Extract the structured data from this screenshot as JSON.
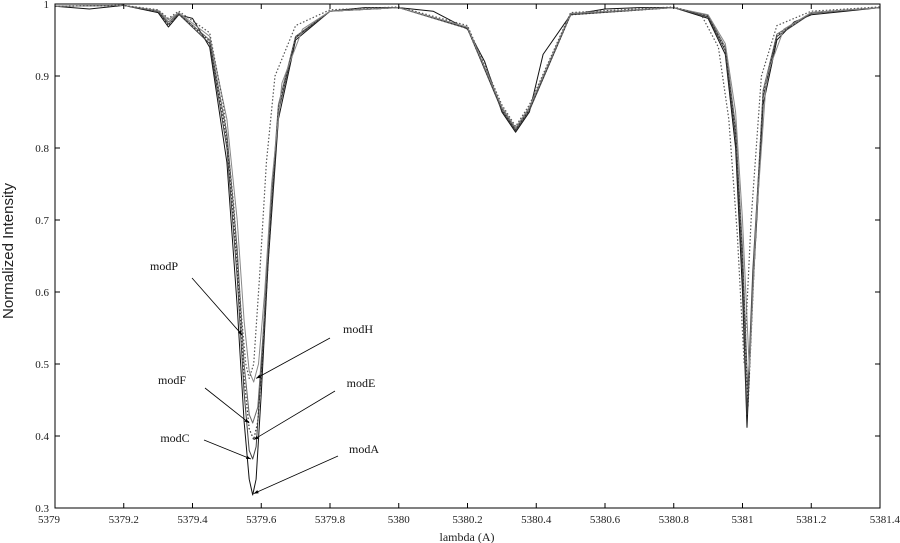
{
  "chart_data": {
    "type": "line",
    "xlabel": "lambda (A)",
    "ylabel": "Normalized Intensity",
    "xlim": [
      5379,
      5381.4
    ],
    "ylim": [
      0.3,
      1
    ],
    "x_ticks": [
      "5379",
      "5379.2",
      "5379.4",
      "5379.6",
      "5379.8",
      "5380",
      "5380.2",
      "5380.4",
      "5380.6",
      "5380.8",
      "5381",
      "5381.2",
      "5381.4"
    ],
    "y_ticks": [
      "0.3",
      "0.4",
      "0.5",
      "0.6",
      "0.7",
      "0.8",
      "0.9",
      "1"
    ],
    "grid": false,
    "series": [
      {
        "name": "modA",
        "style": "solid",
        "x": [
          5379.0,
          5379.1,
          5379.2,
          5379.3,
          5379.33,
          5379.36,
          5379.4,
          5379.45,
          5379.5,
          5379.53,
          5379.55,
          5379.565,
          5379.575,
          5379.585,
          5379.6,
          5379.62,
          5379.65,
          5379.7,
          5379.8,
          5379.9,
          5380.0,
          5380.1,
          5380.2,
          5380.25,
          5380.3,
          5380.34,
          5380.38,
          5380.42,
          5380.5,
          5380.6,
          5380.7,
          5380.8,
          5380.9,
          5380.95,
          5380.98,
          5381.0,
          5381.013,
          5381.03,
          5381.06,
          5381.1,
          5381.15,
          5381.2,
          5381.3,
          5381.4
        ],
        "y": [
          0.997,
          0.993,
          0.998,
          0.988,
          0.968,
          0.985,
          0.98,
          0.94,
          0.78,
          0.58,
          0.42,
          0.34,
          0.318,
          0.34,
          0.46,
          0.64,
          0.84,
          0.95,
          0.99,
          0.995,
          0.995,
          0.99,
          0.965,
          0.92,
          0.85,
          0.822,
          0.85,
          0.93,
          0.985,
          0.993,
          0.995,
          0.995,
          0.98,
          0.93,
          0.8,
          0.6,
          0.412,
          0.6,
          0.86,
          0.95,
          0.975,
          0.985,
          0.99,
          0.995
        ]
      },
      {
        "name": "modC",
        "style": "solid",
        "x": [
          5379.0,
          5379.2,
          5379.3,
          5379.33,
          5379.36,
          5379.45,
          5379.5,
          5379.53,
          5379.55,
          5379.565,
          5379.575,
          5379.585,
          5379.6,
          5379.62,
          5379.65,
          5379.7,
          5379.8,
          5380.0,
          5380.2,
          5380.3,
          5380.34,
          5380.38,
          5380.5,
          5380.8,
          5380.9,
          5380.95,
          5380.98,
          5381.0,
          5381.013,
          5381.03,
          5381.06,
          5381.1,
          5381.2,
          5381.4
        ],
        "y": [
          0.997,
          0.998,
          0.99,
          0.972,
          0.986,
          0.945,
          0.8,
          0.62,
          0.46,
          0.38,
          0.368,
          0.385,
          0.49,
          0.66,
          0.85,
          0.953,
          0.99,
          0.995,
          0.966,
          0.852,
          0.824,
          0.852,
          0.985,
          0.995,
          0.982,
          0.935,
          0.815,
          0.63,
          0.43,
          0.63,
          0.87,
          0.955,
          0.987,
          0.995
        ]
      },
      {
        "name": "modF",
        "style": "solid",
        "x": [
          5379.0,
          5379.2,
          5379.3,
          5379.33,
          5379.36,
          5379.45,
          5379.5,
          5379.53,
          5379.55,
          5379.565,
          5379.575,
          5379.59,
          5379.605,
          5379.625,
          5379.65,
          5379.7,
          5379.8,
          5380.0,
          5380.2,
          5380.3,
          5380.34,
          5380.38,
          5380.5,
          5380.8,
          5380.9,
          5380.95,
          5380.98,
          5381.0,
          5381.016,
          5381.035,
          5381.06,
          5381.1,
          5381.2,
          5381.4
        ],
        "y": [
          0.997,
          0.998,
          0.99,
          0.975,
          0.987,
          0.95,
          0.82,
          0.66,
          0.5,
          0.43,
          0.418,
          0.44,
          0.54,
          0.7,
          0.86,
          0.955,
          0.99,
          0.995,
          0.967,
          0.855,
          0.826,
          0.855,
          0.986,
          0.995,
          0.984,
          0.94,
          0.83,
          0.66,
          0.455,
          0.66,
          0.88,
          0.958,
          0.988,
          0.995
        ]
      },
      {
        "name": "modE",
        "style": "dotted",
        "x": [
          5379.0,
          5379.2,
          5379.3,
          5379.33,
          5379.36,
          5379.45,
          5379.5,
          5379.53,
          5379.55,
          5379.565,
          5379.578,
          5379.59,
          5379.605,
          5379.625,
          5379.65,
          5379.7,
          5379.8,
          5380.0,
          5380.2,
          5380.3,
          5380.34,
          5380.38,
          5380.5,
          5380.8,
          5380.9,
          5380.95,
          5380.98,
          5381.0,
          5381.016,
          5381.035,
          5381.06,
          5381.1,
          5381.2,
          5381.4
        ],
        "y": [
          0.997,
          0.998,
          0.99,
          0.97,
          0.986,
          0.948,
          0.81,
          0.64,
          0.48,
          0.41,
          0.395,
          0.42,
          0.52,
          0.68,
          0.855,
          0.954,
          0.99,
          0.995,
          0.966,
          0.853,
          0.825,
          0.853,
          0.985,
          0.995,
          0.983,
          0.937,
          0.82,
          0.645,
          0.44,
          0.645,
          0.875,
          0.956,
          0.988,
          0.995
        ]
      },
      {
        "name": "modH",
        "style": "solid",
        "x": [
          5379.0,
          5379.2,
          5379.3,
          5379.33,
          5379.36,
          5379.45,
          5379.5,
          5379.53,
          5379.55,
          5379.565,
          5379.578,
          5379.592,
          5379.61,
          5379.63,
          5379.66,
          5379.72,
          5379.8,
          5380.0,
          5380.2,
          5380.3,
          5380.34,
          5380.38,
          5380.5,
          5380.8,
          5380.9,
          5380.95,
          5380.98,
          5381.0,
          5381.02,
          5381.04,
          5381.07,
          5381.12,
          5381.2,
          5381.4
        ],
        "y": [
          0.997,
          0.998,
          0.991,
          0.978,
          0.988,
          0.955,
          0.84,
          0.7,
          0.56,
          0.49,
          0.475,
          0.5,
          0.6,
          0.75,
          0.89,
          0.965,
          0.99,
          0.995,
          0.968,
          0.857,
          0.828,
          0.857,
          0.987,
          0.995,
          0.985,
          0.945,
          0.85,
          0.7,
          0.49,
          0.7,
          0.9,
          0.965,
          0.988,
          0.995
        ]
      },
      {
        "name": "modP",
        "style": "dotted",
        "x": [
          5379.0,
          5379.2,
          5379.3,
          5379.33,
          5379.36,
          5379.45,
          5379.49,
          5379.52,
          5379.54,
          5379.555,
          5379.565,
          5379.578,
          5379.595,
          5379.615,
          5379.64,
          5379.7,
          5379.8,
          5380.0,
          5380.2,
          5380.3,
          5380.34,
          5380.38,
          5380.5,
          5380.8,
          5380.88,
          5380.93,
          5380.96,
          5380.985,
          5381.005,
          5381.025,
          5381.055,
          5381.1,
          5381.2,
          5381.4
        ],
        "y": [
          0.997,
          0.998,
          0.992,
          0.98,
          0.99,
          0.96,
          0.86,
          0.72,
          0.58,
          0.5,
          0.48,
          0.5,
          0.62,
          0.78,
          0.9,
          0.97,
          0.992,
          0.996,
          0.97,
          0.86,
          0.83,
          0.86,
          0.988,
          0.996,
          0.985,
          0.94,
          0.84,
          0.68,
          0.5,
          0.7,
          0.9,
          0.97,
          0.99,
          0.996
        ]
      }
    ],
    "annotations": [
      {
        "text": "modP",
        "target": [
          5379.545,
          0.54
        ]
      },
      {
        "text": "modH",
        "target": [
          5379.585,
          0.48
        ]
      },
      {
        "text": "modF",
        "target": [
          5379.565,
          0.418
        ]
      },
      {
        "text": "modE",
        "target": [
          5379.578,
          0.395
        ]
      },
      {
        "text": "modC",
        "target": [
          5379.57,
          0.368
        ]
      },
      {
        "text": "modA",
        "target": [
          5379.578,
          0.32
        ]
      }
    ]
  }
}
